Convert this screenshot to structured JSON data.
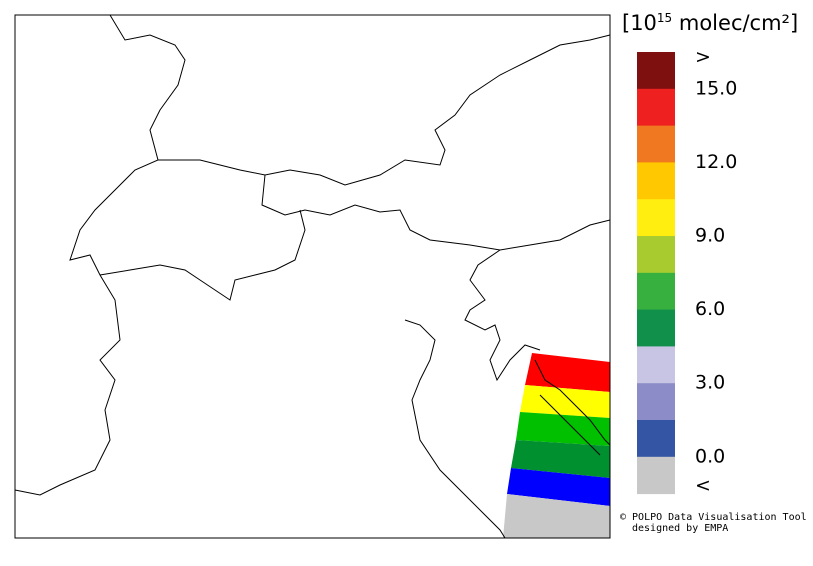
{
  "legend": {
    "title": {
      "prefix": "[10",
      "exponent": "15",
      "suffix": " molec/cm²]"
    },
    "segments": [
      "#7f1010",
      "#ee2020",
      "#f07820",
      "#ffc800",
      "#ffee10",
      "#a8cc30",
      "#38b040",
      "#10904a",
      "#c8c4e4",
      "#8c8cc8",
      "#3454a4",
      "#c8c8c8"
    ],
    "labels": [
      ">",
      "15.0",
      "12.0",
      "9.0",
      "6.0",
      "3.0",
      "0.0",
      "<"
    ]
  },
  "credits": [
    "© POLPO Data Visualisation Tool",
    "designed by EMPA"
  ]
}
